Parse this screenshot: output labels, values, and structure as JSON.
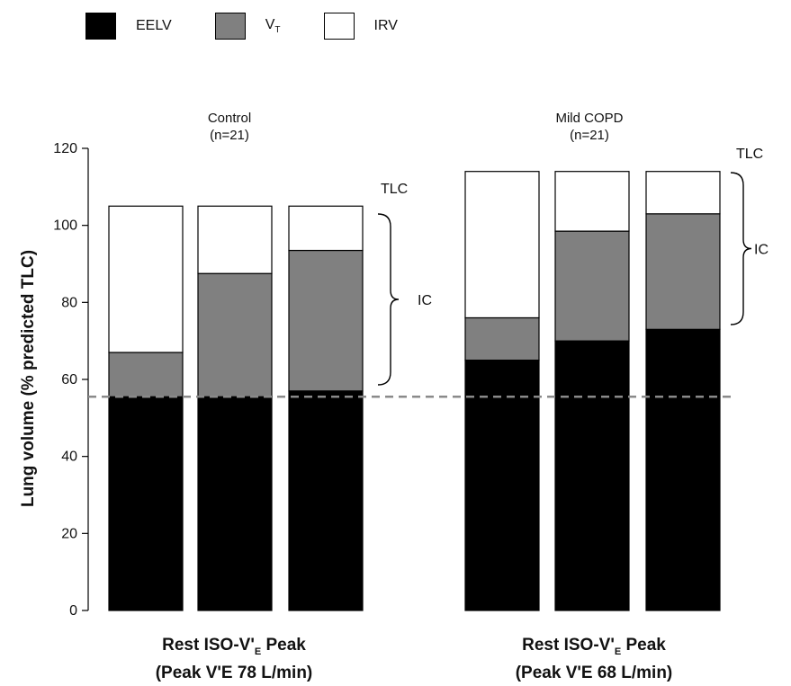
{
  "legend": {
    "eelv_label": "EELV",
    "vt_label_main": "V",
    "vt_label_sub": "T",
    "irv_label": "IRV",
    "eelv_color": "#000000",
    "vt_color": "#808080",
    "irv_color": "#ffffff"
  },
  "groups": {
    "control_title": "Control",
    "control_n": "(n=21)",
    "copd_title": "Mild COPD",
    "copd_n": "(n=21)"
  },
  "annotations": {
    "tlc": "TLC",
    "ic": "IC"
  },
  "xaxis": {
    "control_line1_pre": "Rest ISO-V'",
    "control_line1_sub": "E",
    "control_line1_post": " Peak",
    "control_line2": "(Peak V'E 78 L/min)",
    "copd_line1_pre": "Rest ISO-V'",
    "copd_line1_sub": "E",
    "copd_line1_post": " Peak",
    "copd_line2": "(Peak V'E 68 L/min)"
  },
  "chart_data": {
    "type": "bar",
    "stacked": true,
    "ylabel": "Lung volume (% predicted TLC)",
    "ylim": [
      0,
      120
    ],
    "yticks": [
      0,
      20,
      40,
      60,
      80,
      100,
      120
    ],
    "reference_line": {
      "y": 55.5,
      "style": "dashed"
    },
    "bars": [
      {
        "group": "Control",
        "label": "Rest",
        "EELV": 55.5,
        "VT": 11.5,
        "IRV": 38.0
      },
      {
        "group": "Control",
        "label": "ISO-V'E",
        "EELV": 55.5,
        "VT": 32.0,
        "IRV": 17.5
      },
      {
        "group": "Control",
        "label": "Peak",
        "EELV": 57.0,
        "VT": 36.5,
        "IRV": 11.5
      },
      {
        "group": "Mild COPD",
        "label": "Rest",
        "EELV": 65.0,
        "VT": 11.0,
        "IRV": 38.0
      },
      {
        "group": "Mild COPD",
        "label": "ISO-V'E",
        "EELV": 70.0,
        "VT": 28.5,
        "IRV": 15.5
      },
      {
        "group": "Mild COPD",
        "label": "Peak",
        "EELV": 73.0,
        "VT": 30.0,
        "IRV": 11.0
      }
    ]
  }
}
